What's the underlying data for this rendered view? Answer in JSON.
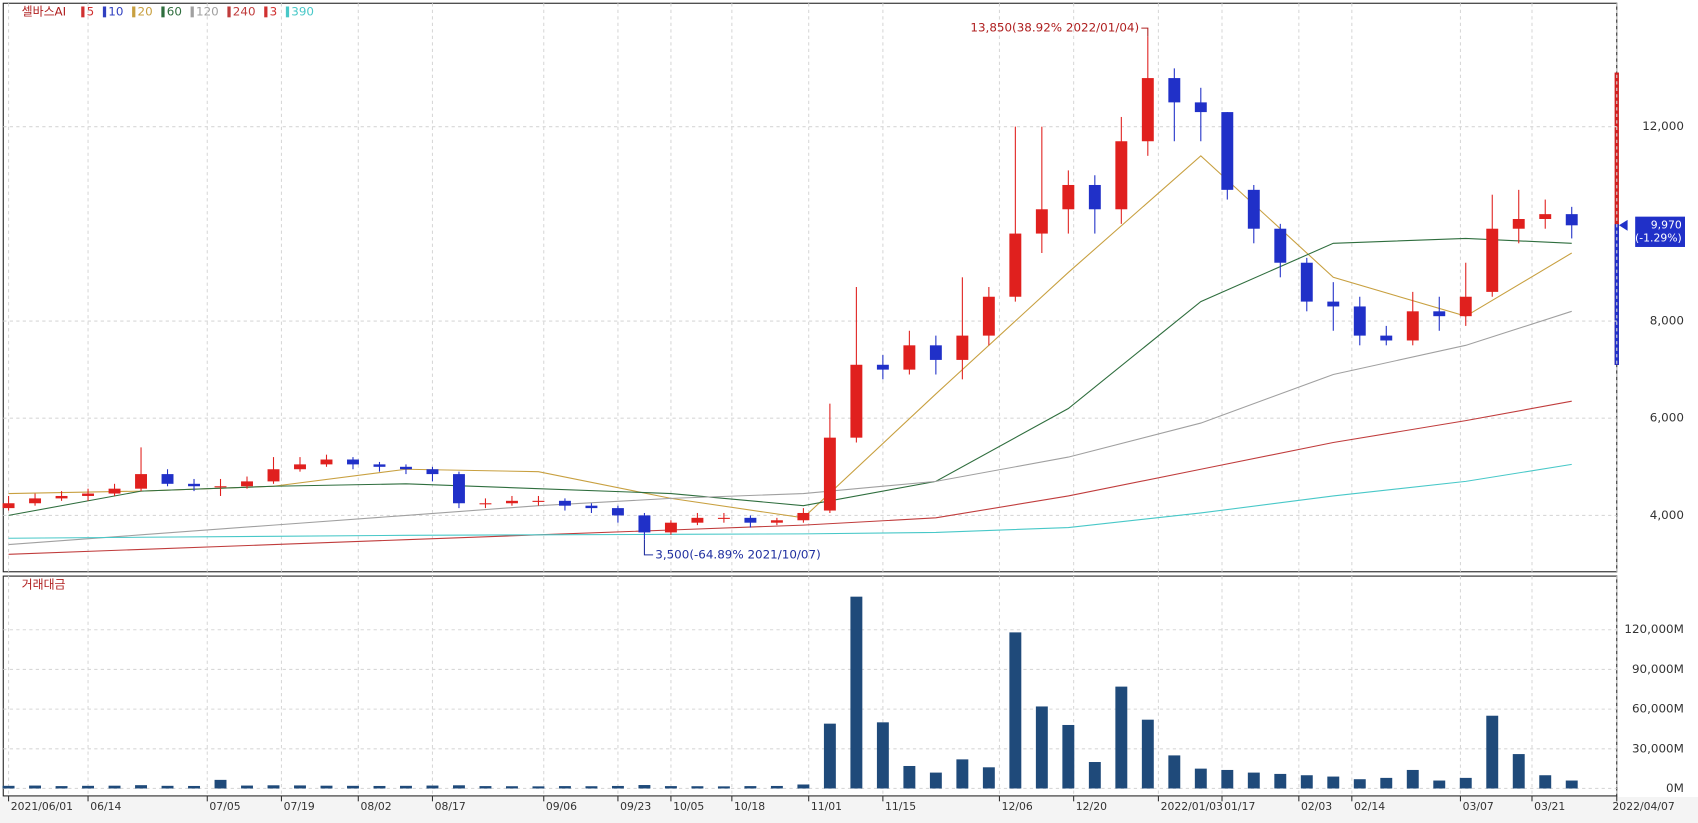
{
  "chart_data": {
    "type": "candlestick",
    "title": "셀바스AI",
    "legend": [
      {
        "name": "5",
        "color": "#d03030"
      },
      {
        "name": "10",
        "color": "#3040c0"
      },
      {
        "name": "20",
        "color": "#c8a040"
      },
      {
        "name": "60",
        "color": "#2f6e3e"
      },
      {
        "name": "120",
        "color": "#a0a0a0"
      },
      {
        "name": "240",
        "color": "#c03c3c"
      },
      {
        "name": "3",
        "color": "#d03030"
      },
      {
        "name": "390",
        "color": "#48c8c8"
      }
    ],
    "up_color": "#e0201e",
    "down_color": "#2030c8",
    "open": [
      4150,
      4250,
      4350,
      4400,
      4450,
      4550,
      4850,
      4650,
      4600,
      4600,
      4700,
      4950,
      5050,
      5150,
      5050,
      5000,
      4950,
      4850,
      4250,
      4250,
      4300,
      4300,
      4200,
      4150,
      4000,
      3650,
      3850,
      3950,
      3950,
      3850,
      3900,
      4100,
      5600,
      7100,
      7000,
      7500,
      7200,
      7700,
      8500,
      9800,
      10300,
      10800,
      10300,
      11700,
      13000,
      12500,
      12300,
      10700,
      9900,
      9200,
      8400,
      8300,
      7700,
      7600,
      8200,
      8100,
      8600,
      9900,
      10100,
      10200
    ],
    "high": [
      4400,
      4450,
      4500,
      4550,
      4650,
      5400,
      4950,
      4750,
      4750,
      4800,
      5200,
      5200,
      5250,
      5200,
      5100,
      5050,
      5000,
      4900,
      4350,
      4400,
      4400,
      4350,
      4250,
      4200,
      4050,
      3900,
      4050,
      4050,
      4000,
      3950,
      4150,
      6300,
      8700,
      7300,
      7800,
      7700,
      8900,
      8700,
      12000,
      12000,
      11100,
      11000,
      12200,
      13850,
      13200,
      12800,
      12300,
      10800,
      10000,
      9300,
      8800,
      8500,
      7900,
      8600,
      8500,
      9200,
      10600,
      10700,
      10500,
      10350
    ],
    "low": [
      4100,
      4200,
      4300,
      4300,
      4400,
      4500,
      4600,
      4500,
      4400,
      4550,
      4650,
      4900,
      5000,
      4950,
      4900,
      4850,
      4700,
      4150,
      4150,
      4200,
      4200,
      4100,
      4050,
      3850,
      3500,
      3600,
      3800,
      3850,
      3750,
      3800,
      3850,
      4050,
      5500,
      6800,
      6900,
      6900,
      6800,
      7500,
      8400,
      9400,
      9800,
      9800,
      10000,
      11400,
      11700,
      11700,
      10500,
      9600,
      8900,
      8200,
      7800,
      7500,
      7500,
      7500,
      7800,
      7900,
      8500,
      9600,
      9900,
      9700
    ],
    "close": [
      4250,
      4350,
      4400,
      4450,
      4550,
      4850,
      4650,
      4600,
      4600,
      4700,
      4950,
      5050,
      5150,
      5050,
      5000,
      4950,
      4850,
      4250,
      4250,
      4300,
      4300,
      4200,
      4150,
      4000,
      3650,
      3850,
      3950,
      3950,
      3850,
      3900,
      4050,
      5600,
      7100,
      7000,
      7500,
      7200,
      7700,
      8500,
      9800,
      10300,
      10800,
      10300,
      11700,
      13000,
      12500,
      12300,
      10700,
      9900,
      9200,
      8400,
      8300,
      7700,
      7600,
      8200,
      8100,
      8500,
      9900,
      10100,
      10200,
      9970
    ],
    "ma_x": [
      0,
      5,
      10,
      15,
      20,
      25,
      30,
      35,
      40,
      45,
      50,
      55,
      59
    ],
    "ma": [
      {
        "name": "20",
        "color": "#c8a040",
        "values": [
          4450,
          4500,
          4600,
          4950,
          4900,
          4350,
          3950,
          6500,
          9000,
          11400,
          8900,
          8100,
          9400
        ]
      },
      {
        "name": "60",
        "color": "#2f6e3e",
        "values": [
          4000,
          4500,
          4600,
          4650,
          4550,
          4450,
          4200,
          4700,
          6200,
          8400,
          9600,
          9700,
          9600
        ]
      },
      {
        "name": "120",
        "color": "#a0a0a0",
        "values": [
          3400,
          3600,
          3800,
          4000,
          4200,
          4350,
          4450,
          4700,
          5200,
          5900,
          6900,
          7500,
          8200
        ]
      },
      {
        "name": "240",
        "color": "#c03c3c",
        "values": [
          3200,
          3300,
          3400,
          3500,
          3600,
          3700,
          3800,
          3950,
          4400,
          4950,
          5500,
          5950,
          6350
        ]
      },
      {
        "name": "390",
        "color": "#48c8c8",
        "values": [
          3530,
          3550,
          3570,
          3590,
          3600,
          3610,
          3620,
          3650,
          3750,
          4050,
          4400,
          4700,
          5050
        ]
      }
    ],
    "high_annotation": "13,850(38.92% 2022/01/04)",
    "low_annotation": "3,500(-64.89% 2021/10/07)",
    "last_price_label": "9,970",
    "last_change_label": "(-1.29%)",
    "xlim": [
      -0.2,
      60.7
    ],
    "xticks": [
      {
        "value": 0,
        "label": "2021/06/01"
      },
      {
        "value": 3,
        "label": "06/14"
      },
      {
        "value": 7.5,
        "label": "07/05"
      },
      {
        "value": 10.3,
        "label": "07/19"
      },
      {
        "value": 13.2,
        "label": "08/02"
      },
      {
        "value": 16,
        "label": "08/17"
      },
      {
        "value": 20.2,
        "label": "09/06"
      },
      {
        "value": 23,
        "label": "09/23"
      },
      {
        "value": 25,
        "label": "10/05"
      },
      {
        "value": 27.3,
        "label": "10/18"
      },
      {
        "value": 30.2,
        "label": "11/01"
      },
      {
        "value": 33,
        "label": "11/15"
      },
      {
        "value": 37.4,
        "label": "12/06"
      },
      {
        "value": 40.2,
        "label": "12/20"
      },
      {
        "value": 43.4,
        "label": "2022/01/03"
      },
      {
        "value": 45.8,
        "label": "01/17"
      },
      {
        "value": 48.7,
        "label": "02/03"
      },
      {
        "value": 50.7,
        "label": "02/14"
      },
      {
        "value": 54.8,
        "label": "03/07"
      },
      {
        "value": 57.5,
        "label": "03/21"
      },
      {
        "value": 60.7,
        "label": "2022/04/07"
      }
    ],
    "ylim": [
      2840,
      14540
    ],
    "yticks": [
      {
        "value": 4000,
        "label": "4,000"
      },
      {
        "value": 6000,
        "label": "6,000"
      },
      {
        "value": 8000,
        "label": "8,000"
      },
      {
        "value": 12000,
        "label": "12,000"
      }
    ],
    "grid": true,
    "volume_title": "거래대금",
    "volume_color": "#1f4a7a",
    "volume": [
      2000,
      2200,
      1800,
      2000,
      2100,
      2500,
      2000,
      1900,
      6500,
      2200,
      2400,
      2300,
      2100,
      2000,
      1900,
      2000,
      2200,
      2400,
      1800,
      1700,
      1600,
      1800,
      1700,
      1900,
      2600,
      1800,
      1700,
      1600,
      1800,
      1900,
      3000,
      49000,
      145000,
      50000,
      17000,
      12000,
      22000,
      16000,
      118000,
      62000,
      48000,
      20000,
      77000,
      52000,
      25000,
      15000,
      14000,
      12000,
      11000,
      10000,
      9000,
      7000,
      8000,
      14000,
      6000,
      8000,
      55000,
      26000,
      10000,
      6000
    ],
    "vlim": [
      -4000,
      154000
    ],
    "vticks": [
      {
        "value": 0,
        "label": "0M"
      },
      {
        "value": 30000,
        "label": "30,000M"
      },
      {
        "value": 60000,
        "label": "60,000M"
      },
      {
        "value": 90000,
        "label": "90,000M"
      },
      {
        "value": 120000,
        "label": "120,000M"
      }
    ]
  }
}
